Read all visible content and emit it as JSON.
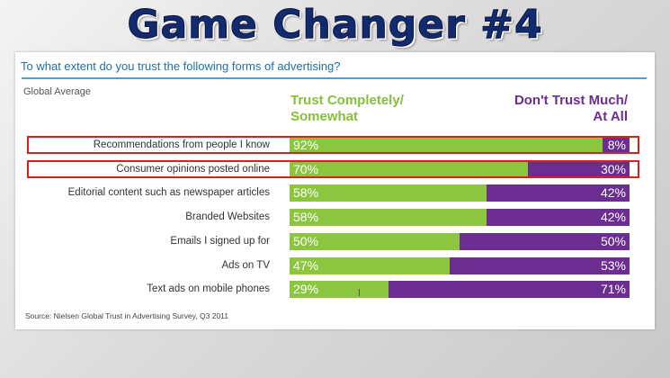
{
  "headline": "Game Changer #4",
  "chart_data": {
    "type": "bar",
    "stacked": true,
    "orientation": "horizontal",
    "title": "To what extent do you trust the following forms of advertising?",
    "subtitle": "Global Average",
    "source": "Source: Nielsen Global Trust in Advertising Survey, Q3 2011",
    "xlim": [
      0,
      100
    ],
    "legend_placement": "top",
    "categories": [
      "Recommendations from people I know",
      "Consumer opinions posted online",
      "Editorial content such as newspaper articles",
      "Branded Websites",
      "Emails I signed up for",
      "Ads on TV",
      "Text ads on mobile phones"
    ],
    "series": [
      {
        "name": "Trust Completely/ Somewhat",
        "color": "#8cc63f",
        "values": [
          92,
          70,
          58,
          58,
          50,
          47,
          29
        ]
      },
      {
        "name": "Don't Trust Much/ At All",
        "color": "#6b2d8f",
        "values": [
          8,
          30,
          42,
          42,
          50,
          53,
          71
        ]
      }
    ],
    "value_labels": {
      "trust": [
        "92%",
        "70%",
        "58%",
        "58%",
        "50%",
        "47%",
        "29%"
      ],
      "dont_trust": [
        "8%",
        "30%",
        "42%",
        "42%",
        "50%",
        "53%",
        "71%"
      ]
    },
    "legend_lines": {
      "trust": [
        "Trust Completely/",
        "Somewhat"
      ],
      "dont_trust": [
        "Don't Trust Much/",
        "At All"
      ]
    },
    "highlighted_rows": [
      0,
      1
    ],
    "highlight_color": "#e01e1e"
  }
}
